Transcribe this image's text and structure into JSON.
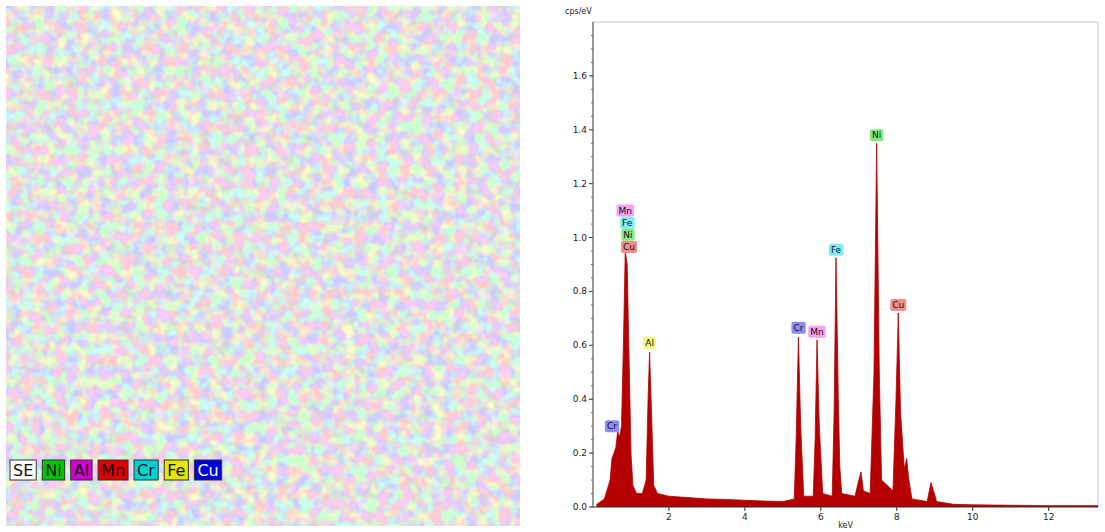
{
  "map": {
    "legend": [
      {
        "label": "SE",
        "color": "#ffffff"
      },
      {
        "label": "Ni",
        "color": "#00c800"
      },
      {
        "label": "Al",
        "color": "#d200d2"
      },
      {
        "label": "Mn",
        "color": "#e00000"
      },
      {
        "label": "Cr",
        "color": "#00d2d2"
      },
      {
        "label": "Fe",
        "color": "#e6e600"
      },
      {
        "label": "Cu",
        "color": "#0000dc"
      }
    ]
  },
  "chart_data": {
    "type": "area",
    "y_label": "cps/eV",
    "x_label": "keV",
    "color": "#b40000",
    "x": [
      0.1,
      0.3,
      0.45,
      0.5,
      0.55,
      0.6,
      0.65,
      0.7,
      0.75,
      0.8,
      0.85,
      0.9,
      0.95,
      1.0,
      1.05,
      1.15,
      1.3,
      1.4,
      1.45,
      1.49,
      1.53,
      1.6,
      1.7,
      2.0,
      2.5,
      3.0,
      3.5,
      4.0,
      4.5,
      5.0,
      5.3,
      5.35,
      5.41,
      5.47,
      5.55,
      5.8,
      5.85,
      5.9,
      5.96,
      6.05,
      6.3,
      6.35,
      6.4,
      6.46,
      6.5,
      6.55,
      6.9,
      7.0,
      7.06,
      7.12,
      7.3,
      7.4,
      7.47,
      7.54,
      7.6,
      7.9,
      7.98,
      8.04,
      8.1,
      8.2,
      8.26,
      8.32,
      8.4,
      8.8,
      8.9,
      8.97,
      9.05,
      9.5,
      10,
      12,
      13.3
    ],
    "values": [
      0.01,
      0.03,
      0.1,
      0.18,
      0.2,
      0.22,
      0.28,
      0.26,
      0.3,
      0.6,
      0.95,
      0.9,
      0.55,
      0.2,
      0.08,
      0.05,
      0.05,
      0.1,
      0.4,
      0.575,
      0.4,
      0.08,
      0.05,
      0.04,
      0.035,
      0.03,
      0.028,
      0.025,
      0.022,
      0.02,
      0.03,
      0.25,
      0.63,
      0.3,
      0.04,
      0.04,
      0.25,
      0.62,
      0.3,
      0.05,
      0.04,
      0.35,
      0.925,
      0.4,
      0.15,
      0.05,
      0.04,
      0.1,
      0.13,
      0.06,
      0.05,
      0.5,
      1.35,
      0.5,
      0.1,
      0.06,
      0.4,
      0.72,
      0.35,
      0.14,
      0.18,
      0.1,
      0.03,
      0.02,
      0.09,
      0.06,
      0.02,
      0.01,
      0.008,
      0.005,
      0.005
    ],
    "xlim": [
      0,
      13.3
    ],
    "ylim": [
      0,
      1.8
    ],
    "xticks": [
      2,
      4,
      6,
      8,
      10,
      12
    ],
    "yticks": [
      {
        "value": 0,
        "label": "0.0"
      },
      {
        "value": 0.2,
        "label": "0.2"
      },
      {
        "value": 0.4,
        "label": "0.4"
      },
      {
        "value": 0.6,
        "label": "0.6"
      },
      {
        "value": 0.8,
        "label": "0.8"
      },
      {
        "value": 1.0,
        "label": "1.0"
      },
      {
        "value": 1.2,
        "label": "1.2"
      },
      {
        "value": 1.4,
        "label": "1.4"
      },
      {
        "value": 1.6,
        "label": "1.6"
      }
    ],
    "grid": false,
    "annotations": [
      {
        "text": "Cr",
        "x": 0.5,
        "y": 0.3,
        "color": "#8c8cf5"
      },
      {
        "text": "Mn",
        "x": 0.85,
        "y": 1.1,
        "color": "#f5a0f5"
      },
      {
        "text": "Fe",
        "x": 0.9,
        "y": 1.055,
        "color": "#80ecf5"
      },
      {
        "text": "Ni",
        "x": 0.92,
        "y": 1.01,
        "color": "#80ec80"
      },
      {
        "text": "Cu",
        "x": 0.95,
        "y": 0.965,
        "color": "#f58c8c"
      },
      {
        "text": "Al",
        "x": 1.49,
        "y": 0.61,
        "color": "#f5f580"
      },
      {
        "text": "Cr",
        "x": 5.41,
        "y": 0.665,
        "color": "#8c8cf5"
      },
      {
        "text": "Mn",
        "x": 5.9,
        "y": 0.65,
        "color": "#f5a0f5"
      },
      {
        "text": "Fe",
        "x": 6.4,
        "y": 0.955,
        "color": "#80ecf5"
      },
      {
        "text": "Ni",
        "x": 7.47,
        "y": 1.38,
        "color": "#80ec80"
      },
      {
        "text": "Cu",
        "x": 8.04,
        "y": 0.75,
        "color": "#f58c8c"
      }
    ]
  }
}
